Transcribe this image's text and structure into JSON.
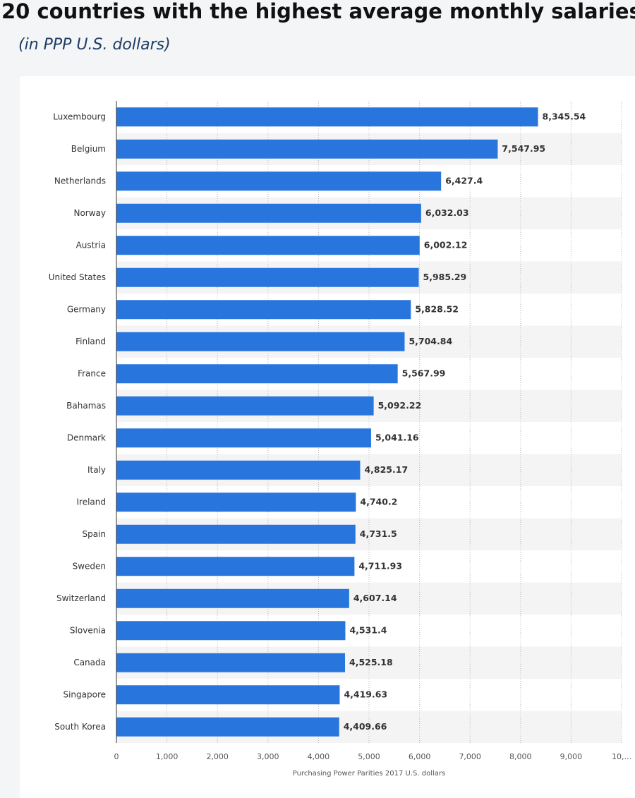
{
  "chart_data": {
    "type": "bar",
    "orientation": "horizontal",
    "title": "20 countries with the highest average monthly salaries",
    "subtitle": "(in PPP U.S. dollars)",
    "x_label": "Purchasing Power Parities 2017 U.S. dollars",
    "categories": [
      "Luxembourg",
      "Belgium",
      "Netherlands",
      "Norway",
      "Austria",
      "United States",
      "Germany",
      "Finland",
      "France",
      "Bahamas",
      "Denmark",
      "Italy",
      "Ireland",
      "Spain",
      "Sweden",
      "Switzerland",
      "Slovenia",
      "Canada",
      "Singapore",
      "South Korea"
    ],
    "values": [
      8345.54,
      7547.95,
      6427.4,
      6032.03,
      6002.12,
      5985.29,
      5828.52,
      5704.84,
      5567.99,
      5092.22,
      5041.16,
      4825.17,
      4740.2,
      4731.5,
      4711.93,
      4607.14,
      4531.4,
      4525.18,
      4419.63,
      4409.66
    ],
    "value_labels": [
      "8,345.54",
      "7,547.95",
      "6,427.4",
      "6,032.03",
      "6,002.12",
      "5,985.29",
      "5,828.52",
      "5,704.84",
      "5,567.99",
      "5,092.22",
      "5,041.16",
      "4,825.17",
      "4,740.2",
      "4,731.5",
      "4,711.93",
      "4,607.14",
      "4,531.4",
      "4,525.18",
      "4,419.63",
      "4,409.66"
    ],
    "color": "#2876dd",
    "xlim": [
      0,
      10000
    ],
    "xticks": [
      0,
      {
        "value": 1000,
        "label": "1,000"
      },
      {
        "value": 2000,
        "label": "2,000"
      },
      {
        "value": 3000,
        "label": "3,000"
      },
      {
        "value": 4000,
        "label": "4,000"
      },
      {
        "value": 5000,
        "label": "5,000"
      },
      {
        "value": 6000,
        "label": "6,000"
      },
      {
        "value": 7000,
        "label": "7,000"
      },
      {
        "value": 8000,
        "label": "8,000"
      },
      {
        "value": 9000,
        "label": "9,000"
      },
      {
        "value": 10000,
        "label": "10,..."
      }
    ],
    "grid": true
  }
}
